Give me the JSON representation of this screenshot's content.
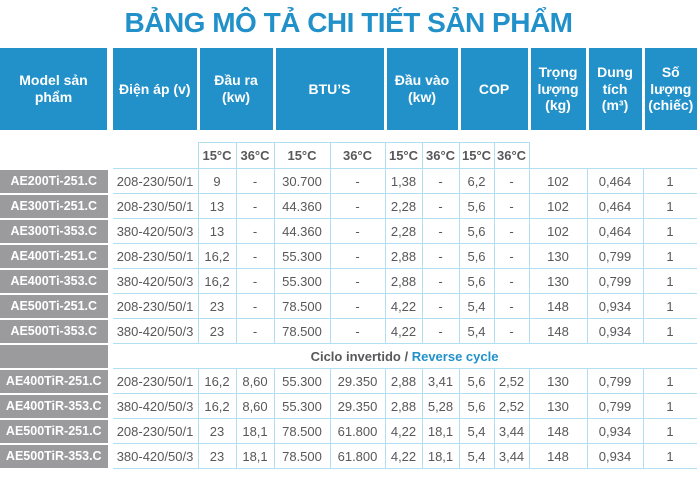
{
  "title": "BẢNG MÔ TẢ CHI TIẾT SẢN PHẨM",
  "colors": {
    "accent_blue": "#2291c9",
    "model_cell_gray": "#9b9b9d",
    "grid_border_light_blue": "#b2def2",
    "body_text_gray": "#58585a"
  },
  "table": {
    "column_headers": {
      "model": "Model sản phẩm",
      "voltage": "Điện áp (v)",
      "output": "Đầu ra (kw)",
      "btus": "BTU’S",
      "input": "Đầu vào (kw)",
      "cop": "COP",
      "weight": "Trọng lượng (kg)",
      "volume": "Dung tích (m³)",
      "quantity": "Số lượng (chiếc)"
    },
    "temp_subheaders": [
      "15°C",
      "36°C",
      "15°C",
      "36°C",
      "15°C",
      "36°C",
      "15°C",
      "36°C"
    ],
    "separator": {
      "label_es": "Ciclo invertido /",
      "label_en": "Reverse cycle"
    },
    "sections": [
      {
        "name": "cooling-only",
        "rows": [
          {
            "model": "AE200Ti-251.C",
            "values": [
              "208-230/50/1",
              "9",
              "-",
              "30.700",
              "-",
              "1,38",
              "-",
              "6,2",
              "-",
              "102",
              "0,464",
              "1"
            ]
          },
          {
            "model": "AE300Ti-251.C",
            "values": [
              "208-230/50/1",
              "13",
              "-",
              "44.360",
              "-",
              "2,28",
              "-",
              "5,6",
              "-",
              "102",
              "0,464",
              "1"
            ]
          },
          {
            "model": "AE300Ti-353.C",
            "values": [
              "380-420/50/3",
              "13",
              "-",
              "44.360",
              "-",
              "2,28",
              "-",
              "5,6",
              "-",
              "102",
              "0,464",
              "1"
            ]
          },
          {
            "model": "AE400Ti-251.C",
            "values": [
              "208-230/50/1",
              "16,2",
              "-",
              "55.300",
              "-",
              "2,88",
              "-",
              "5,6",
              "-",
              "130",
              "0,799",
              "1"
            ]
          },
          {
            "model": "AE400Ti-353.C",
            "values": [
              "380-420/50/3",
              "16,2",
              "-",
              "55.300",
              "-",
              "2,88",
              "-",
              "5,6",
              "-",
              "130",
              "0,799",
              "1"
            ]
          },
          {
            "model": "AE500Ti-251.C",
            "values": [
              "208-230/50/1",
              "23",
              "-",
              "78.500",
              "-",
              "4,22",
              "-",
              "5,4",
              "-",
              "148",
              "0,934",
              "1"
            ]
          },
          {
            "model": "AE500Ti-353.C",
            "values": [
              "380-420/50/3",
              "23",
              "-",
              "78.500",
              "-",
              "4,22",
              "-",
              "5,4",
              "-",
              "148",
              "0,934",
              "1"
            ]
          }
        ]
      },
      {
        "name": "reverse-cycle",
        "rows": [
          {
            "model": "AE400TiR-251.C",
            "values": [
              "208-230/50/1",
              "16,2",
              "8,60",
              "55.300",
              "29.350",
              "2,88",
              "3,41",
              "5,6",
              "2,52",
              "130",
              "0,799",
              "1"
            ]
          },
          {
            "model": "AE400TiR-353.C",
            "values": [
              "380-420/50/3",
              "16,2",
              "8,60",
              "55.300",
              "29.350",
              "2,88",
              "5,28",
              "5,6",
              "2,52",
              "130",
              "0,799",
              "1"
            ]
          },
          {
            "model": "AE500TiR-251.C",
            "values": [
              "208-230/50/1",
              "23",
              "18,1",
              "78.500",
              "61.800",
              "4,22",
              "18,1",
              "5,4",
              "3,44",
              "148",
              "0,934",
              "1"
            ]
          },
          {
            "model": "AE500TiR-353.C",
            "values": [
              "380-420/50/3",
              "23",
              "18,1",
              "78.500",
              "61.800",
              "4,22",
              "18,1",
              "5,4",
              "3,44",
              "148",
              "0,934",
              "1"
            ]
          }
        ]
      }
    ]
  }
}
